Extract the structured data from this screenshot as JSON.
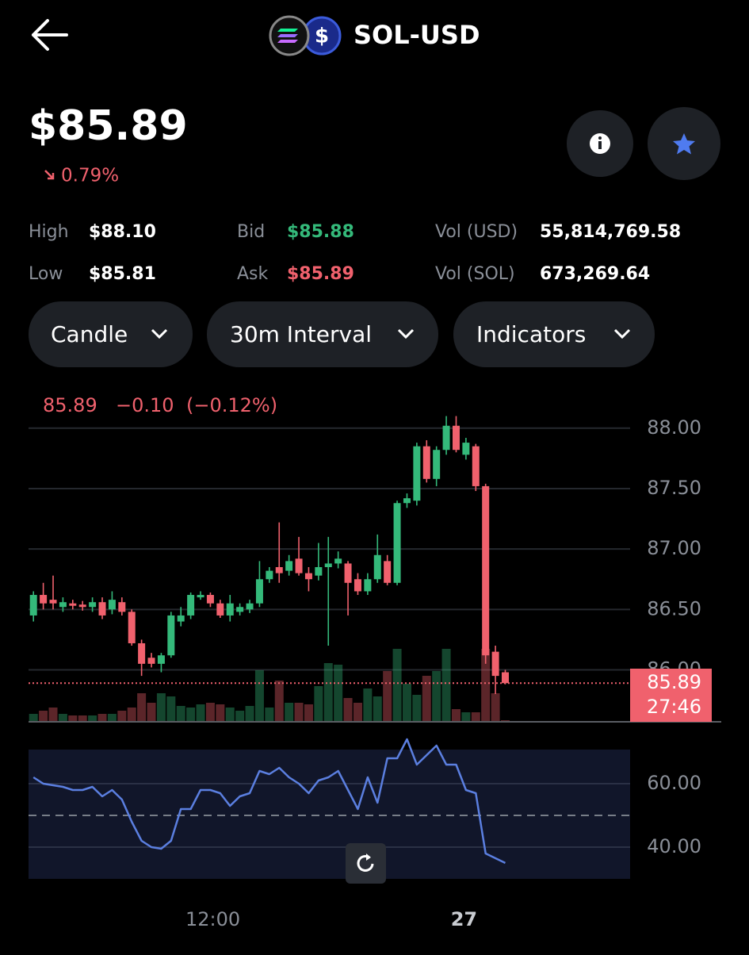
{
  "header": {
    "title": "SOL-USD"
  },
  "price": "$85.89",
  "change": "0.79%",
  "stats": [
    {
      "label": "High",
      "value": "$88.10"
    },
    {
      "label": "Low",
      "value": "$85.81"
    },
    {
      "label": "Bid",
      "value": "$85.88"
    },
    {
      "label": "Ask",
      "value": "$85.89"
    },
    {
      "label": "Vol (USD)",
      "value": "55,814,769.58"
    },
    {
      "label": "Vol (SOL)",
      "value": "673,269.64"
    }
  ],
  "controls": [
    "Candle",
    "30m Interval",
    "Indicators"
  ],
  "chart_data": [
    {
      "type": "candlestick",
      "legend": {
        "change": "−0.10",
        "percent": "(−0.12%)"
      },
      "open": [
        86.45,
        86.62,
        86.58,
        86.52,
        86.55,
        86.54,
        86.52,
        86.56,
        86.5,
        86.56,
        86.48,
        86.22,
        86.1,
        86.05,
        86.12,
        86.4,
        86.45,
        86.6,
        86.62,
        86.55,
        86.45,
        86.48,
        86.5,
        86.55,
        86.75,
        86.85,
        86.82,
        86.92,
        86.8,
        86.78,
        86.85,
        86.88,
        86.88,
        86.75,
        86.65,
        86.75,
        86.9,
        86.72,
        87.38,
        87.4,
        87.85,
        87.58,
        87.82,
        88.02,
        87.78,
        87.85,
        87.52,
        86.15,
        85.98
      ],
      "high": [
        86.65,
        86.72,
        86.78,
        86.6,
        86.58,
        86.57,
        86.6,
        86.6,
        86.65,
        86.6,
        86.5,
        86.25,
        86.14,
        86.14,
        86.48,
        86.52,
        86.64,
        86.65,
        86.64,
        86.58,
        86.62,
        86.55,
        86.58,
        86.9,
        86.85,
        87.22,
        86.95,
        87.1,
        86.85,
        87.05,
        87.1,
        86.98,
        86.9,
        86.8,
        86.8,
        87.12,
        86.95,
        87.4,
        87.46,
        87.88,
        87.9,
        87.85,
        88.1,
        88.1,
        87.92,
        87.87,
        87.54,
        86.2,
        86.0
      ],
      "low": [
        86.4,
        86.5,
        86.5,
        86.48,
        86.5,
        86.49,
        86.48,
        86.42,
        86.46,
        86.45,
        86.2,
        85.95,
        86.02,
        85.98,
        86.1,
        86.36,
        86.42,
        86.58,
        86.52,
        86.43,
        86.4,
        86.45,
        86.47,
        86.52,
        86.72,
        86.72,
        86.78,
        86.78,
        86.65,
        86.74,
        86.2,
        86.84,
        86.45,
        86.62,
        86.62,
        86.72,
        86.7,
        86.7,
        87.34,
        87.36,
        87.55,
        87.52,
        87.78,
        87.8,
        87.74,
        87.48,
        86.05,
        85.8,
        85.88
      ],
      "close": [
        86.62,
        86.55,
        86.55,
        86.56,
        86.53,
        86.52,
        86.56,
        86.45,
        86.58,
        86.48,
        86.22,
        86.05,
        86.05,
        86.12,
        86.45,
        86.45,
        86.62,
        86.62,
        86.55,
        86.45,
        86.55,
        86.52,
        86.55,
        86.75,
        86.82,
        86.8,
        86.9,
        86.8,
        86.75,
        86.85,
        86.88,
        86.92,
        86.72,
        86.65,
        86.75,
        86.95,
        86.72,
        87.38,
        87.42,
        87.85,
        87.58,
        87.82,
        88.02,
        87.82,
        87.88,
        87.52,
        86.12,
        85.95,
        85.89
      ],
      "volume": [
        10,
        14,
        18,
        10,
        8,
        8,
        8,
        10,
        10,
        14,
        18,
        36,
        24,
        36,
        32,
        20,
        18,
        22,
        24,
        22,
        18,
        14,
        20,
        65,
        18,
        52,
        24,
        24,
        22,
        45,
        74,
        72,
        30,
        24,
        42,
        32,
        64,
        92,
        48,
        34,
        58,
        64,
        92,
        16,
        12,
        12,
        92,
        36,
        2
      ],
      "xlim": [
        -0.5,
        60.7
      ],
      "ylim": [
        85.57,
        88.13
      ],
      "yticks": [
        {
          "value": 86,
          "label": "86.00"
        },
        {
          "value": 86.5,
          "label": "86.50"
        },
        {
          "value": 87,
          "label": "87.00"
        },
        {
          "value": 87.5,
          "label": "87.50"
        },
        {
          "value": 88,
          "label": "88.00"
        }
      ],
      "current_price": 85.89,
      "countdown": "27:46",
      "up_color": "#34b97a",
      "down_color": "#f0616d",
      "grid": true
    },
    {
      "type": "line",
      "values": [
        62,
        60,
        59.5,
        59,
        58,
        58,
        59,
        56,
        58,
        55,
        48,
        42,
        40,
        39.5,
        42,
        52,
        52,
        58,
        58,
        57,
        53,
        56,
        57,
        64,
        63,
        65,
        62,
        60,
        57,
        61,
        62,
        64,
        58,
        52,
        62,
        54,
        68,
        68,
        74,
        66,
        69,
        72,
        66,
        66,
        58,
        57,
        38,
        36.5,
        35
      ],
      "color": "#5b7fe0",
      "xlim": [
        -0.5,
        60.7
      ],
      "ylim": [
        30,
        70.75
      ],
      "yticks": [
        {
          "value": 40,
          "label": "40.00"
        },
        {
          "value": 60,
          "label": "60.00"
        }
      ],
      "reference_line": 50,
      "xticks": [
        {
          "value": 18.25,
          "label": "12:00"
        },
        {
          "value": 43.8,
          "label": "27"
        }
      ],
      "grid": true
    }
  ]
}
